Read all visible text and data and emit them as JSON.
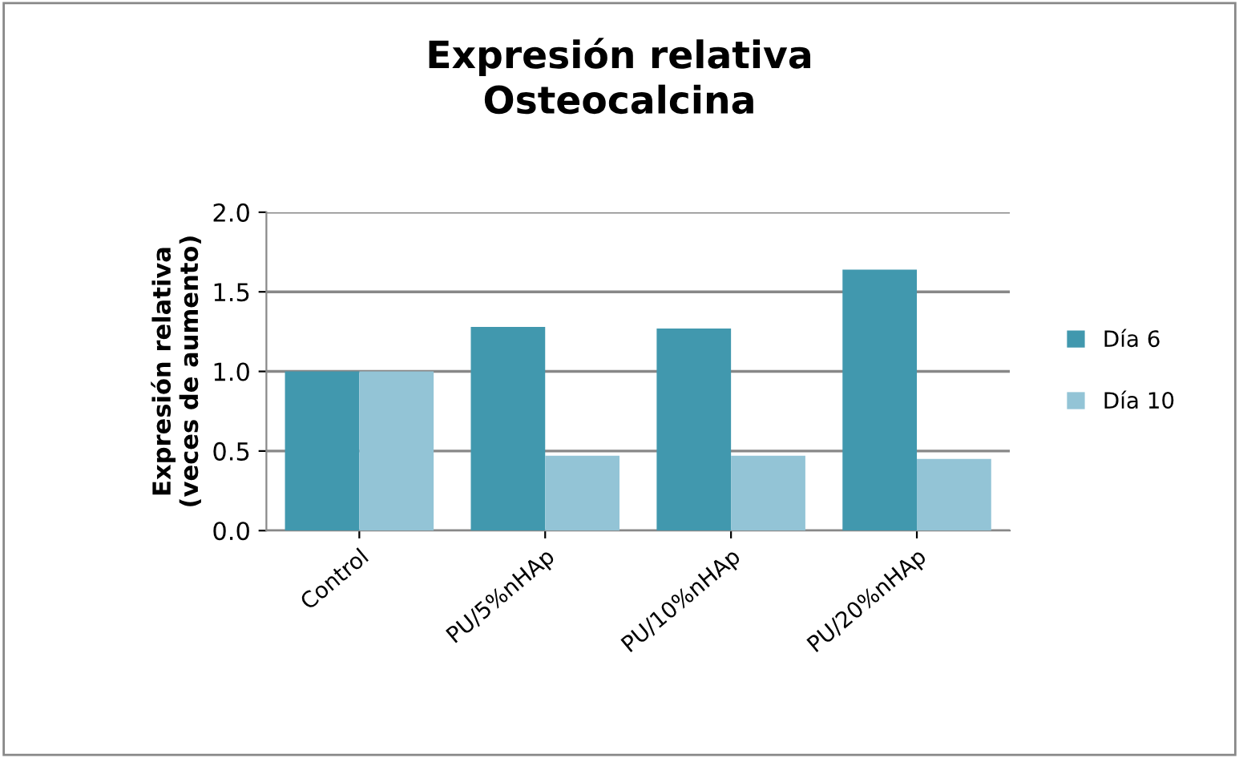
{
  "chart_data": {
    "type": "bar",
    "title": "Expresión relativa\nOsteocalcina",
    "ylabel": "Expresión relativa\n(veces de aumento)",
    "categories": [
      "Control",
      "PU/5%nHAp",
      "PU/10%nHAp",
      "PU/20%nHAp"
    ],
    "series": [
      {
        "name": "Día 6",
        "color": "#4198ae",
        "values": [
          1.0,
          1.28,
          1.27,
          1.64
        ]
      },
      {
        "name": "Día 10",
        "color": "#93c4d6",
        "values": [
          1.0,
          0.47,
          0.47,
          0.45
        ]
      }
    ],
    "ylim": [
      0,
      2.0
    ],
    "yticks": [
      {
        "value": 0,
        "label": "0.0"
      },
      {
        "value": 0.5,
        "label": "0.5"
      },
      {
        "value": 1.0,
        "label": "1.0"
      },
      {
        "value": 1.5,
        "label": "1.5"
      },
      {
        "value": 2.0,
        "label": "2.0"
      }
    ],
    "grid": "y",
    "legend": "right"
  }
}
